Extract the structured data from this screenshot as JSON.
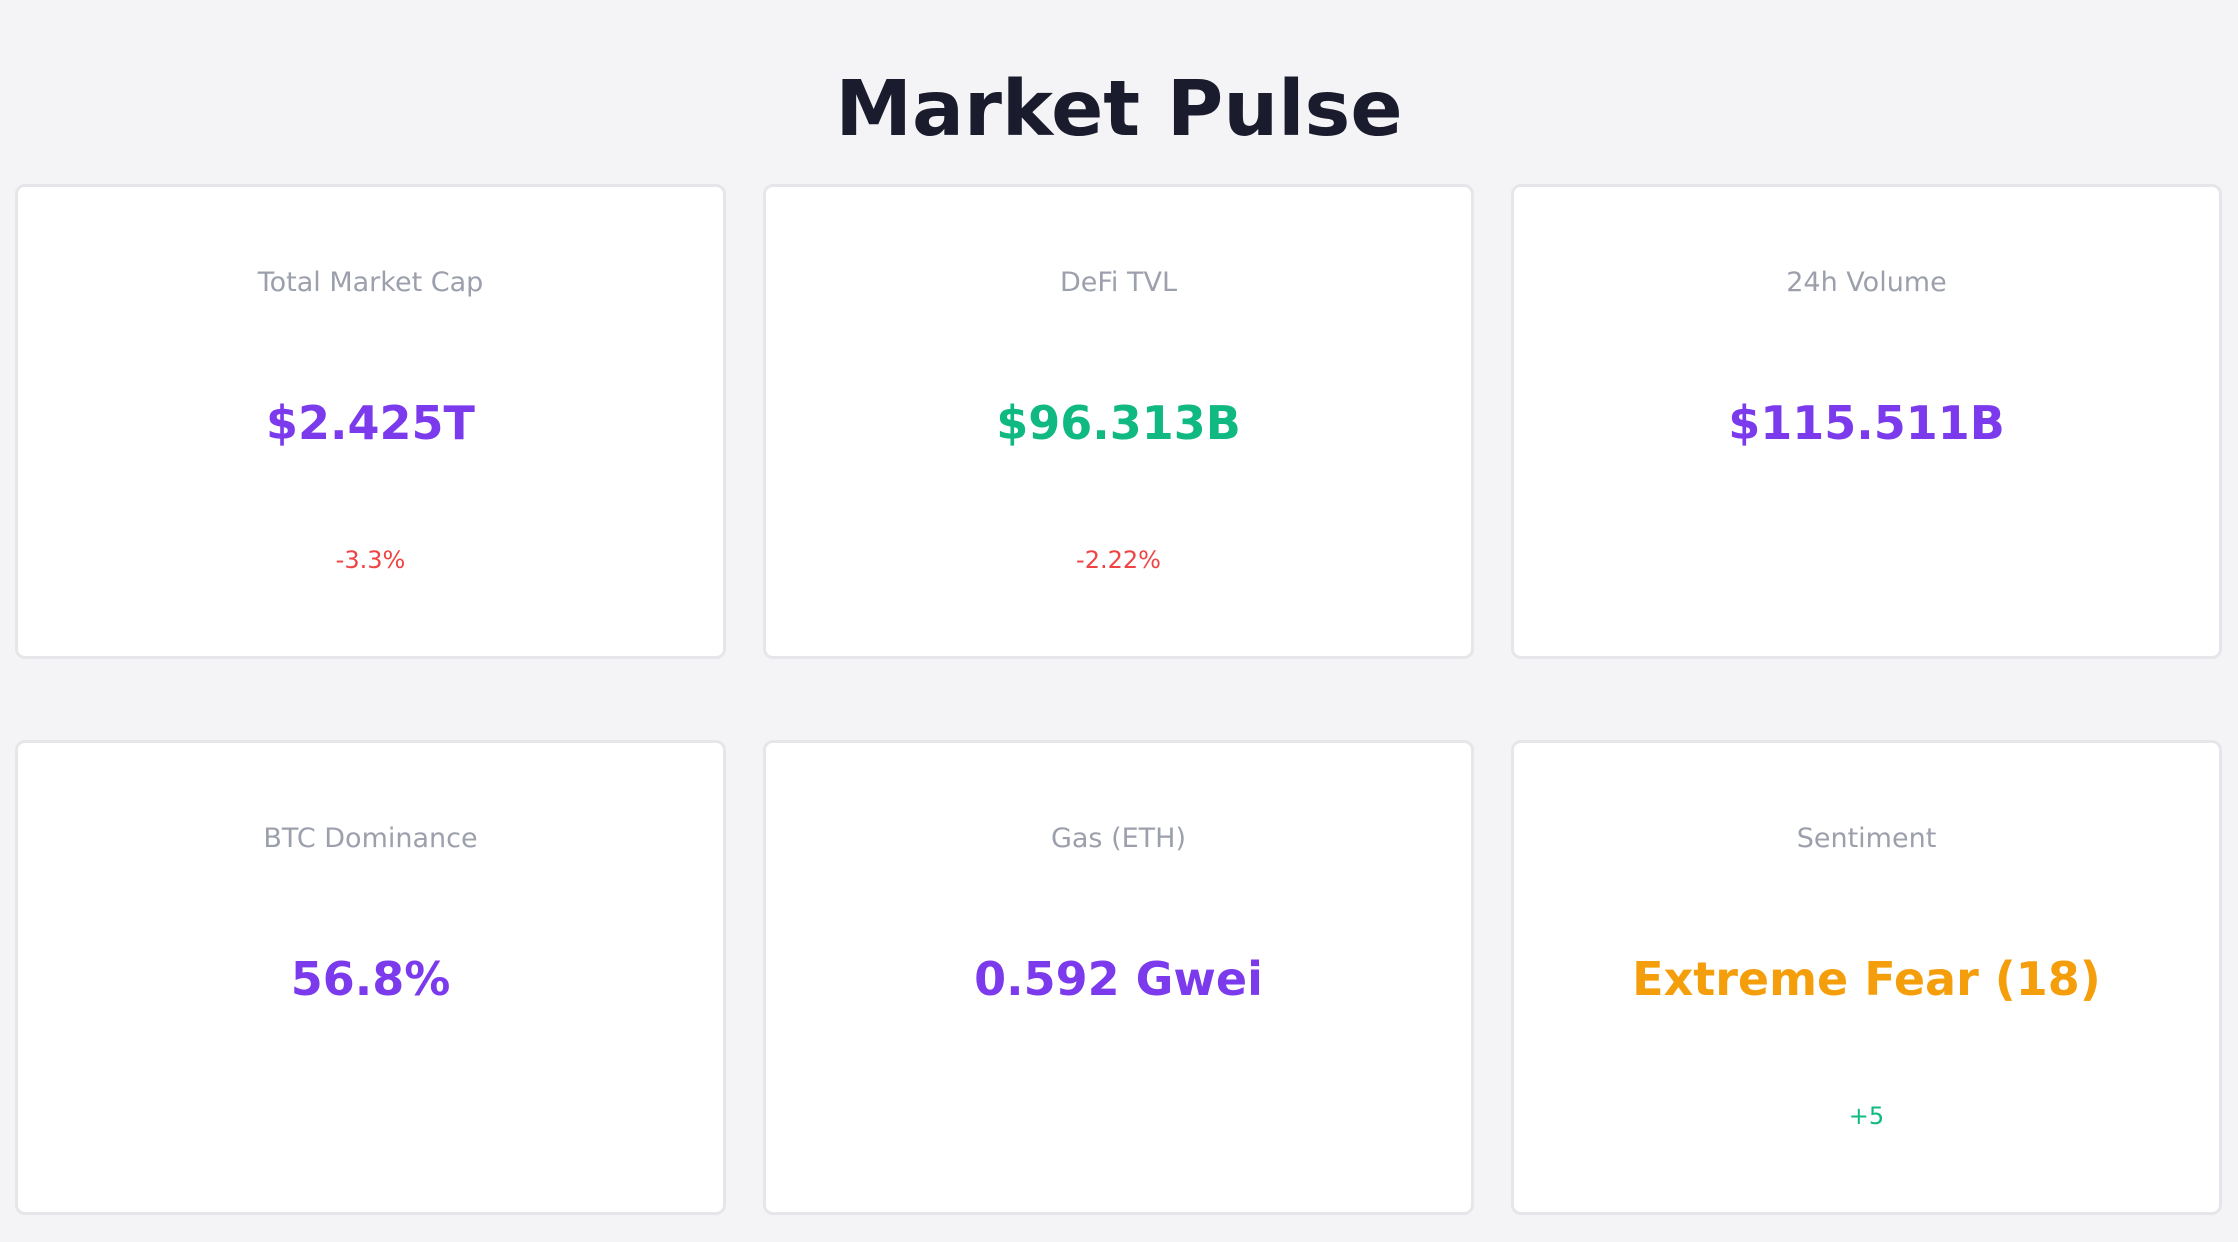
{
  "page": {
    "title": "Market Pulse"
  },
  "colors": {
    "background": "#f4f4f6",
    "title": "#1b1b2e",
    "label": "#9ca0ad",
    "purple": "#7c3aed",
    "green": "#10b981",
    "orange": "#f59e0b",
    "negative": "#ef4444",
    "positive": "#10b981"
  },
  "cards": [
    {
      "label": "Total Market Cap",
      "value": "$2.425T",
      "value_color": "#7c3aed",
      "change": "-3.3%",
      "change_color": "#ef4444"
    },
    {
      "label": "DeFi TVL",
      "value": "$96.313B",
      "value_color": "#10b981",
      "change": "-2.22%",
      "change_color": "#ef4444"
    },
    {
      "label": "24h Volume",
      "value": "$115.511B",
      "value_color": "#7c3aed",
      "change": "",
      "change_color": ""
    },
    {
      "label": "BTC Dominance",
      "value": "56.8%",
      "value_color": "#7c3aed",
      "change": "",
      "change_color": ""
    },
    {
      "label": "Gas (ETH)",
      "value": "0.592 Gwei",
      "value_color": "#7c3aed",
      "change": "",
      "change_color": ""
    },
    {
      "label": "Sentiment",
      "value": "Extreme Fear (18)",
      "value_color": "#f59e0b",
      "change": "+5",
      "change_color": "#10b981"
    }
  ]
}
